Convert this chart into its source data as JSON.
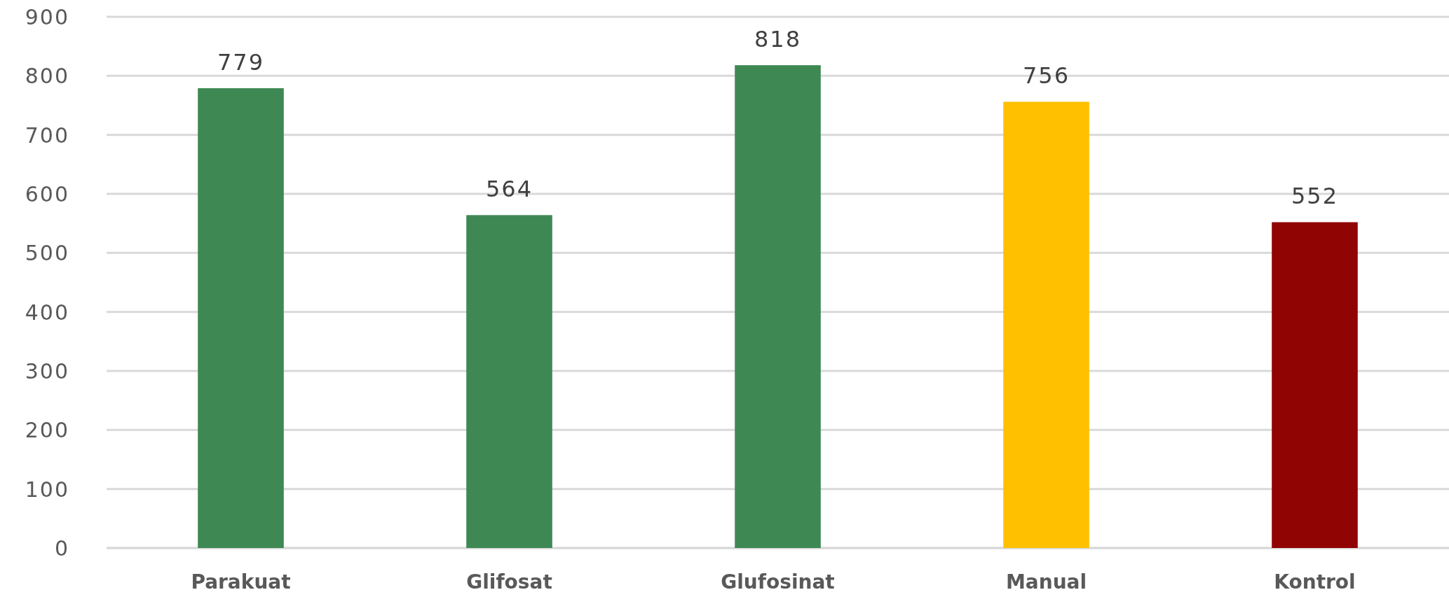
{
  "chart_data": {
    "type": "bar",
    "categories": [
      "Parakuat",
      "Glifosat",
      "Glufosinat",
      "Manual",
      "Kontrol"
    ],
    "values": [
      779,
      564,
      818,
      756,
      552
    ],
    "colors": [
      "#3e8854",
      "#3e8854",
      "#3e8854",
      "#ffc000",
      "#900404"
    ],
    "ylim": [
      0,
      900
    ],
    "yticks": [
      0,
      100,
      200,
      300,
      400,
      500,
      600,
      700,
      800,
      900
    ],
    "grid": "y",
    "data_labels": true
  }
}
